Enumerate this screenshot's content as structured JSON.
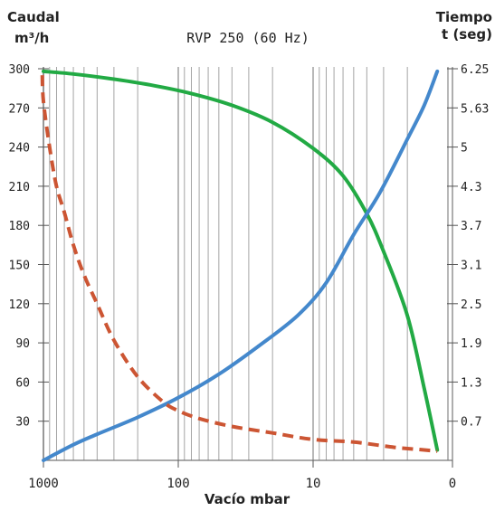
{
  "chart_data": {
    "type": "line",
    "title": "RVP 250 (60 Hz)",
    "left_axis": {
      "label_line1": "Caudal",
      "label_line2": "m³/h",
      "ylim": [
        0,
        300
      ]
    },
    "right_axis": {
      "label_line1": "Tiempo",
      "label_line2": "t (seg)",
      "ylim": [
        0,
        6.25
      ]
    },
    "xlabel": "Vacío mbar",
    "x_scale": "log",
    "x_ticks": [
      "1000",
      "100",
      "10",
      "0"
    ],
    "y_left_ticks": [
      "30",
      "60",
      "90",
      "120",
      "150",
      "180",
      "210",
      "240",
      "270",
      "300"
    ],
    "y_right_ticks": [
      "0.7",
      "1.3",
      "1.9",
      "2.5",
      "3.1",
      "3.7",
      "4.3",
      "5",
      "5.63",
      "6.25"
    ],
    "grid": true,
    "series": [
      {
        "color": "#22aa44",
        "style": "solid",
        "axis": "left",
        "x": [
          1000,
          600,
          300,
          150,
          80,
          40,
          20,
          10,
          6,
          4,
          3,
          2,
          1.5,
          1.2
        ],
        "y": [
          298,
          296,
          292,
          287,
          281,
          272,
          259,
          239,
          218,
          189,
          160,
          111,
          55,
          8
        ]
      },
      {
        "color": "#4488cc",
        "style": "solid",
        "axis": "left",
        "x": [
          1000,
          600,
          400,
          200,
          100,
          50,
          25,
          13,
          8,
          5,
          3.2,
          2,
          1.5,
          1.2
        ],
        "y": [
          0,
          12,
          20,
          33,
          48,
          66,
          88,
          111,
          136,
          173,
          205,
          246,
          272,
          298
        ]
      },
      {
        "color": "#cc5533",
        "style": "dashed",
        "axis": "left",
        "x": [
          1020,
          1000,
          900,
          800,
          700,
          600,
          500,
          400,
          300,
          200,
          130,
          100,
          70,
          40,
          20,
          10,
          5,
          2.5,
          1.5,
          1.2
        ],
        "y": [
          295,
          275,
          240,
          210,
          190,
          165,
          142,
          120,
          92,
          64,
          45,
          38,
          32,
          26,
          21,
          16,
          14,
          10,
          8,
          7
        ]
      }
    ]
  }
}
